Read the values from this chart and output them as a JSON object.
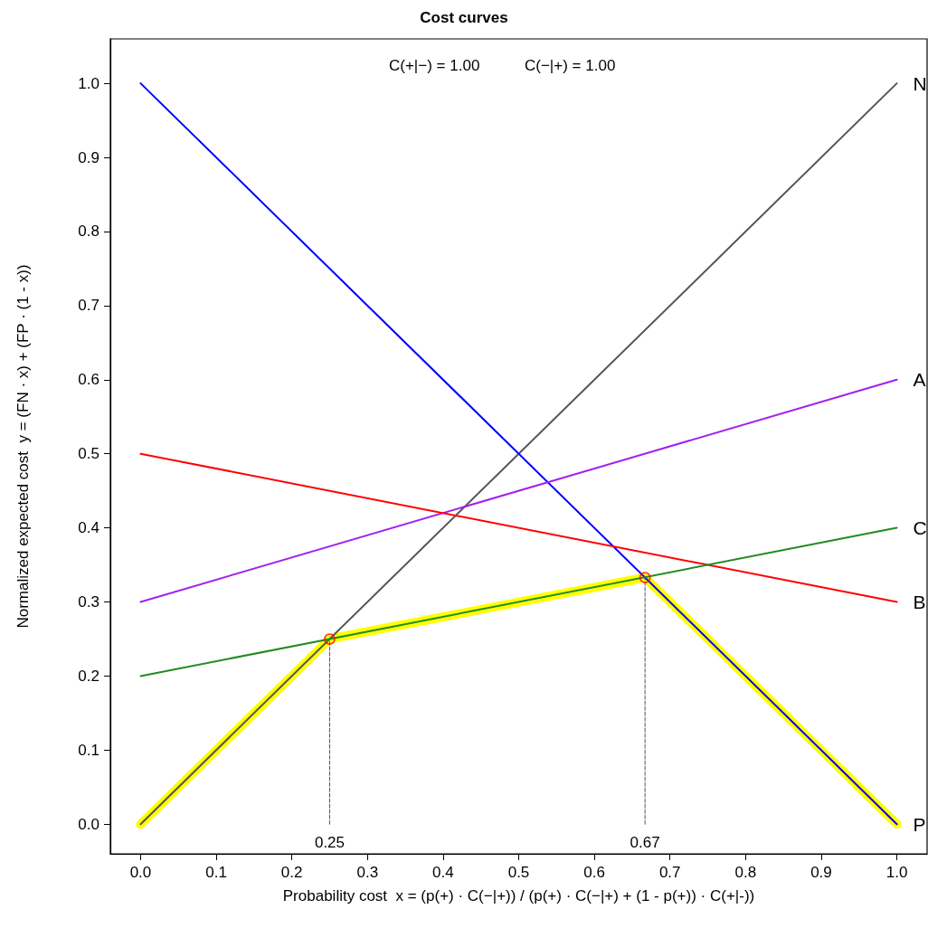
{
  "chart_data": {
    "type": "line",
    "title": "Cost curves",
    "xlabel": "Probability cost  x = (p(+) · C(−|+)) / (p(+) · C(−|+) + (1 - p(+)) · C(+|-))",
    "ylabel": "Normalized expected cost  y = (FN · x) + (FP · (1 - x))",
    "annotations": [
      "C(+|−) = 1.00",
      "C(−|+) = 1.00",
      {
        "text": "0.25",
        "x": 0.25,
        "y": 0
      },
      {
        "text": "0.67",
        "x": 0.667,
        "y": 0
      }
    ],
    "xlim": [
      -0.04,
      1.04
    ],
    "ylim": [
      -0.04,
      1.06
    ],
    "xticks": [
      {
        "value": 0,
        "label": "0.0"
      },
      0.1,
      0.2,
      0.3,
      0.4,
      0.5,
      0.6,
      0.7,
      0.8,
      0.9,
      {
        "value": 1,
        "label": "1.0"
      }
    ],
    "yticks": [
      {
        "value": 0,
        "label": "0.0"
      },
      0.1,
      0.2,
      0.3,
      0.4,
      0.5,
      0.6,
      0.7,
      0.8,
      0.9,
      {
        "value": 1,
        "label": "1.0"
      }
    ],
    "grid": false,
    "legend": false,
    "marker": "none",
    "line_style": "solid",
    "series": [
      {
        "color": "#ffff00",
        "x": [
          0,
          0.25,
          0.667,
          1
        ],
        "values": [
          0,
          0.25,
          0.333,
          0
        ]
      },
      {
        "name": "N",
        "color": "#555555",
        "x": [
          0,
          1
        ],
        "values": [
          0,
          1
        ]
      },
      {
        "name": "P",
        "color": "#0000ff",
        "x": [
          0,
          1
        ],
        "values": [
          1,
          0
        ]
      },
      {
        "name": "A",
        "color": "#a020f0",
        "x": [
          0,
          1
        ],
        "values": [
          0.3,
          0.6
        ]
      },
      {
        "name": "B",
        "color": "#ff0000",
        "x": [
          0,
          1
        ],
        "values": [
          0.5,
          0.3
        ]
      },
      {
        "name": "C",
        "color": "#228b22",
        "x": [
          0,
          1
        ],
        "values": [
          0.2,
          0.4
        ]
      },
      {
        "color": "#555555",
        "line_style": "dashed",
        "x": [
          0.25,
          0.25
        ],
        "values": [
          0,
          0.25
        ]
      },
      {
        "color": "#555555",
        "line_style": "dashed",
        "x": [
          0.667,
          0.667
        ],
        "values": [
          0,
          0.333
        ]
      },
      {
        "type": "scatter",
        "color": "#ff0000",
        "marker": "circle",
        "x": [
          0.25,
          0.667
        ],
        "values": [
          0.25,
          0.333
        ]
      }
    ]
  }
}
